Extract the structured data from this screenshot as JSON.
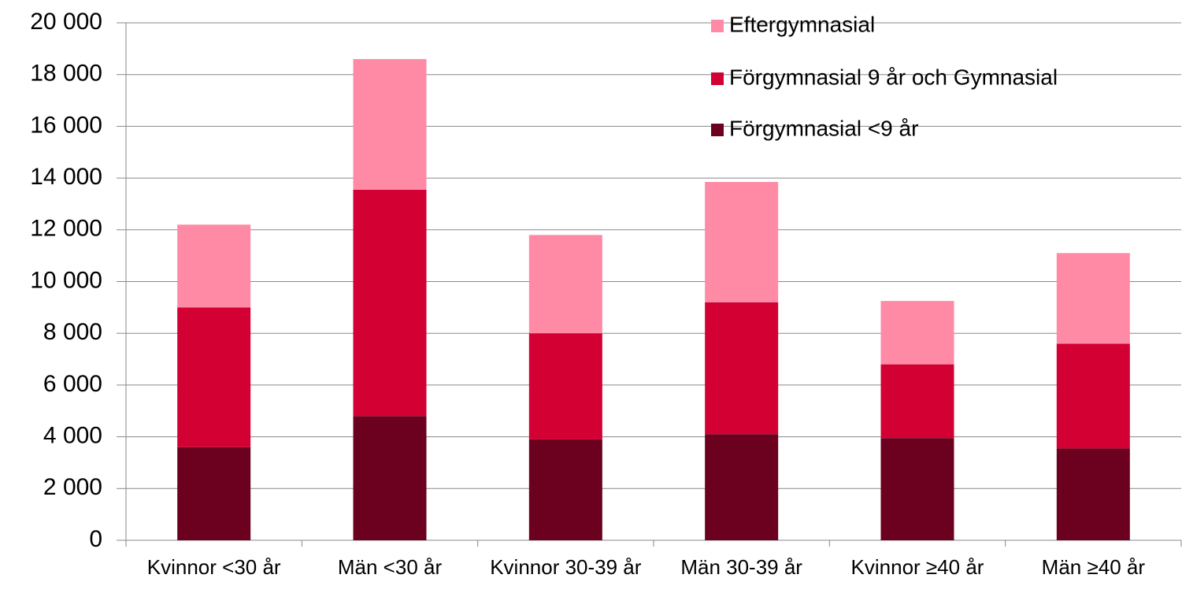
{
  "chart_data": {
    "type": "stacked_bar",
    "categories": [
      "Kvinnor <30 år",
      "Män <30 år",
      "Kvinnor 30-39 år",
      "Män 30-39 år",
      "Kvinnor ≥40 år",
      "Män ≥40 år"
    ],
    "series": [
      {
        "name": "Förgymnasial <9 år",
        "color": "#6b001f",
        "values": [
          3600,
          4800,
          3900,
          4100,
          3950,
          3550
        ]
      },
      {
        "name": "Förgymnasial 9 år och Gymnasial",
        "color": "#d20033",
        "values": [
          5400,
          8750,
          4100,
          5100,
          2850,
          4050
        ]
      },
      {
        "name": "Eftergymnasial",
        "color": "#ff8aa5",
        "values": [
          3200,
          5050,
          3800,
          4650,
          2450,
          3500
        ]
      }
    ],
    "ylim": [
      0,
      20000
    ],
    "yticks": [
      0,
      {
        "value": 2000,
        "label": "2 000"
      },
      {
        "value": 4000,
        "label": "4 000"
      },
      {
        "value": 6000,
        "label": "6 000"
      },
      {
        "value": 8000,
        "label": "8 000"
      },
      {
        "value": 10000,
        "label": "10 000"
      },
      {
        "value": 12000,
        "label": "12 000"
      },
      {
        "value": 14000,
        "label": "14 000"
      },
      {
        "value": 16000,
        "label": "16 000"
      },
      {
        "value": 18000,
        "label": "18 000"
      },
      {
        "value": 20000,
        "label": "20 000"
      }
    ],
    "grid": true,
    "legend": "top-right"
  }
}
